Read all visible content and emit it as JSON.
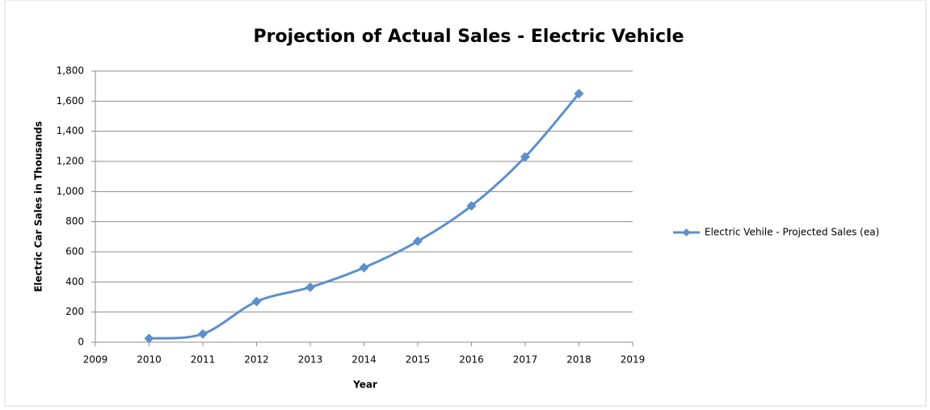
{
  "chart_data": {
    "type": "line",
    "title": "Projection of Actual Sales - Electric Vehicle",
    "xlabel": "Year",
    "ylabel": "Electric Car Sales in Thousands",
    "x": [
      2010,
      2011,
      2012,
      2013,
      2014,
      2015,
      2016,
      2017,
      2018
    ],
    "series": [
      {
        "name": "Electric Vehile - Projected Sales (ea)",
        "color": "#5b8fcd",
        "values": [
          25,
          55,
          270,
          365,
          495,
          670,
          905,
          1230,
          1650
        ]
      }
    ],
    "xlim": [
      2009,
      2019
    ],
    "xticks": [
      2009,
      2010,
      2011,
      2012,
      2013,
      2014,
      2015,
      2016,
      2017,
      2018,
      2019
    ],
    "ylim": [
      0,
      1800
    ],
    "yticks": [
      0,
      200,
      400,
      600,
      800,
      {
        "value": 1000,
        "label": "1,000"
      },
      {
        "value": 1200,
        "label": "1,200"
      },
      {
        "value": 1400,
        "label": "1,400"
      },
      {
        "value": 1600,
        "label": "1,600"
      },
      {
        "value": 1800,
        "label": "1,800"
      }
    ],
    "grid": true,
    "smooth": true,
    "legend": "right"
  }
}
